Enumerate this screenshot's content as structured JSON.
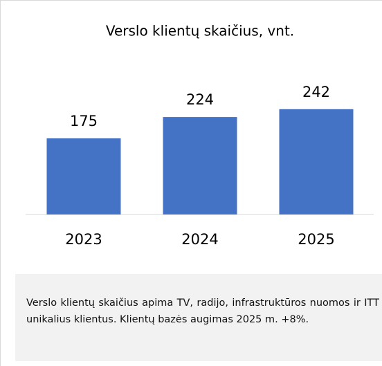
{
  "chart_data": {
    "type": "bar",
    "title": "Verslo klientų skaičius, vnt.",
    "categories": [
      "2023",
      "2024",
      "2025"
    ],
    "values": [
      175,
      224,
      242
    ],
    "color": "#4472c4"
  },
  "note": {
    "text": "Verslo klientų skaičius apima TV, radijo, infrastruktūros nuomos ir ITT unikalius klientus. Klientų bazės augimas 2025 m. +8%."
  }
}
